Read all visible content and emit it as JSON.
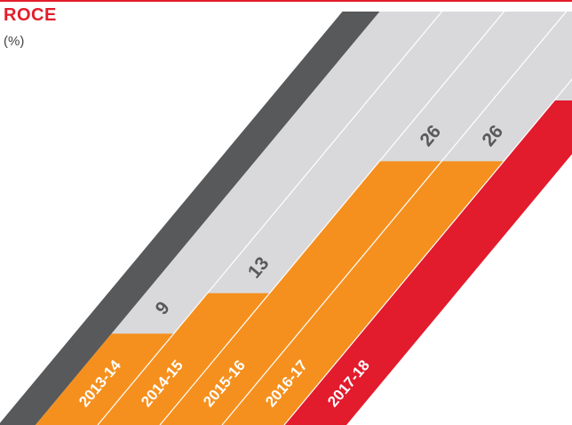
{
  "title": "ROCE",
  "unit": "(%)",
  "colors": {
    "title": "#e11e2b",
    "accent_line": "#e11e2b",
    "past_bar": "#f5901e",
    "current_bar": "#e21b2d",
    "background_band": "#d9d9db",
    "axis_band": "#58595b",
    "value_label": "#58595b",
    "year_label": "#ffffff"
  },
  "chart_data": {
    "type": "bar",
    "title": "ROCE",
    "ylabel": "(%)",
    "categories": [
      "2013-14",
      "2014-15",
      "2015-16",
      "2016-17",
      "2017-18"
    ],
    "values": [
      9,
      13,
      26,
      26,
      32
    ],
    "highlight_category": "2017-18",
    "ylim": [
      0,
      32
    ]
  }
}
